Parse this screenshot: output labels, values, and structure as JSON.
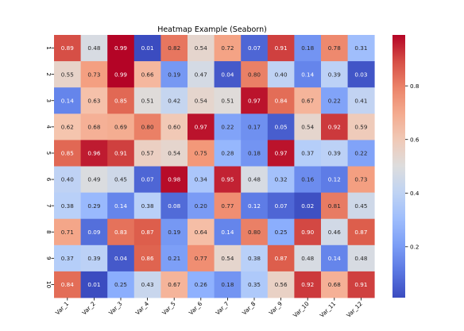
{
  "chart_data": {
    "type": "heatmap",
    "title": "Heatmap Example (Seaborn)",
    "xlabel": "",
    "ylabel": "",
    "x_categories": [
      "Var_1",
      "Var_2",
      "Var_3",
      "Var_4",
      "Var_5",
      "Var_6",
      "Var_7",
      "Var_8",
      "Var_9",
      "Var_10",
      "Var_11",
      "Var_12"
    ],
    "y_categories": [
      "1",
      "2",
      "3",
      "4",
      "5",
      "6",
      "7",
      "8",
      "9",
      "10"
    ],
    "values": [
      [
        0.89,
        0.48,
        0.99,
        0.01,
        0.82,
        0.54,
        0.72,
        0.07,
        0.91,
        0.18,
        0.78,
        0.31
      ],
      [
        0.55,
        0.73,
        0.99,
        0.66,
        0.19,
        0.47,
        0.04,
        0.8,
        0.4,
        0.14,
        0.39,
        0.03
      ],
      [
        0.14,
        0.63,
        0.85,
        0.51,
        0.42,
        0.54,
        0.51,
        0.97,
        0.84,
        0.67,
        0.22,
        0.41
      ],
      [
        0.62,
        0.68,
        0.69,
        0.8,
        0.6,
        0.97,
        0.22,
        0.17,
        0.05,
        0.54,
        0.92,
        0.59
      ],
      [
        0.85,
        0.96,
        0.91,
        0.57,
        0.54,
        0.75,
        0.28,
        0.18,
        0.97,
        0.37,
        0.39,
        0.22
      ],
      [
        0.4,
        0.49,
        0.45,
        0.07,
        0.98,
        0.34,
        0.95,
        0.48,
        0.32,
        0.16,
        0.12,
        0.73
      ],
      [
        0.38,
        0.29,
        0.14,
        0.38,
        0.08,
        0.2,
        0.77,
        0.12,
        0.07,
        0.02,
        0.81,
        0.45
      ],
      [
        0.71,
        0.09,
        0.83,
        0.87,
        0.19,
        0.64,
        0.14,
        0.8,
        0.25,
        0.9,
        0.46,
        0.87
      ],
      [
        0.37,
        0.39,
        0.04,
        0.86,
        0.21,
        0.77,
        0.54,
        0.38,
        0.87,
        0.48,
        0.14,
        0.48
      ],
      [
        0.84,
        0.01,
        0.25,
        0.43,
        0.67,
        0.26,
        0.18,
        0.35,
        0.56,
        0.92,
        0.68,
        0.91
      ]
    ],
    "annotate": true,
    "value_format": "0.00",
    "colormap": "coolwarm",
    "colorbar": {
      "range": [
        0.01,
        0.99
      ],
      "ticks": [
        0.2,
        0.4,
        0.6,
        0.8
      ],
      "tick_labels": [
        "0.2",
        "0.4",
        "0.6",
        "0.8"
      ]
    }
  }
}
